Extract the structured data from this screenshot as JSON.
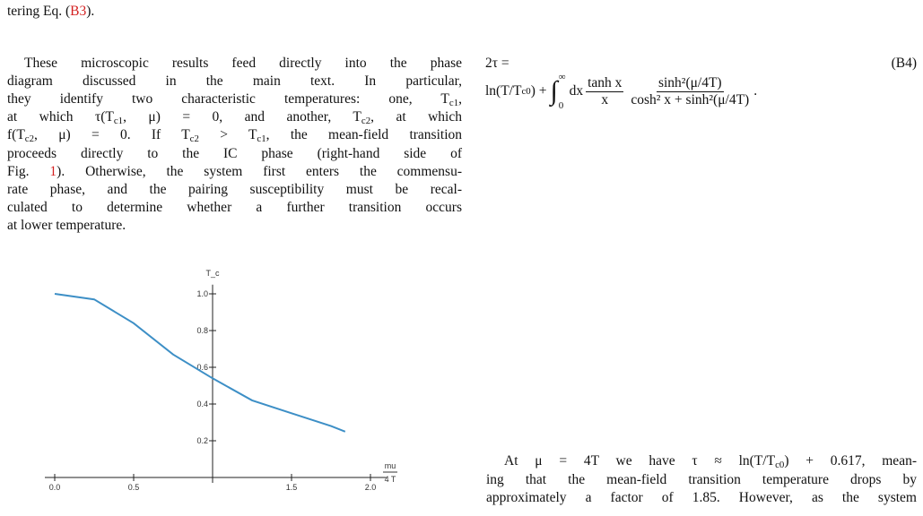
{
  "left": {
    "top_line": [
      "tering Eq. (",
      {
        "ref": "B3"
      },
      ")."
    ],
    "lines": [
      [
        "These microscopic results feed directly into the phase"
      ],
      [
        "diagram discussed in the main text. In particular,"
      ],
      [
        "they identify two characteristic temperatures: one, T",
        {
          "sub": "c1"
        },
        ","
      ],
      [
        "at which τ(T",
        {
          "sub": "c1"
        },
        ", μ) = 0, and another, T",
        {
          "sub": "c2"
        },
        ", at which"
      ],
      [
        "f(T",
        {
          "sub": "c2"
        },
        ", μ) = 0. If T",
        {
          "sub": "c2"
        },
        " > T",
        {
          "sub": "c1"
        },
        ", the mean-field transition"
      ],
      [
        "proceeds directly to the IC phase (right-hand side of"
      ],
      [
        "Fig. ",
        {
          "ref": "1"
        },
        "). Otherwise, the system first enters the commensu-"
      ],
      [
        "rate phase, and the pairing susceptibility must be recal-"
      ],
      [
        "culated to determine whether a further transition occurs"
      ],
      [
        "at lower temperature."
      ]
    ]
  },
  "figure": {
    "y_label": "T_c",
    "x_label_top": "mu",
    "x_label_bottom": "4 T",
    "x": [
      0,
      0.25,
      0.5,
      0.75,
      1.0,
      1.25,
      1.5,
      1.75,
      1.84
    ],
    "y": [
      1.0,
      0.97,
      0.84,
      0.67,
      0.54,
      0.42,
      0.35,
      0.28,
      0.25
    ],
    "color": "#3d8fc6",
    "xlim": [
      0,
      2.1
    ],
    "ylim": [
      0,
      1.05
    ],
    "xticks": [
      {
        "value": 0,
        "label": "0.0"
      },
      0.5,
      1.5,
      {
        "value": 2,
        "label": "2.0"
      }
    ],
    "yticks": [
      0.2,
      0.4,
      0.6,
      0.8,
      {
        "value": 1,
        "label": "1.0"
      }
    ]
  },
  "right": {
    "equation": {
      "lhs": "2τ =",
      "number": "(B4)",
      "ln_start": "ln(T/T",
      "ln_sub": "c0",
      "ln_end": ") +",
      "int_sym": "∫",
      "int_lower": "0",
      "int_upper": "∞",
      "dx": "dx",
      "frac1_num": "tanh x",
      "frac1_den": "x",
      "frac2_num": "sinh²(μ/4T)",
      "frac2_den": "cosh² x + sinh²(μ/4T)",
      "end": "."
    },
    "lines": [
      [
        "At μ = 4T we have τ ≈ ln(T/T",
        {
          "sub": "c0"
        },
        ") + 0.617, mean-"
      ],
      [
        "ing that the mean-field transition temperature drops by"
      ],
      [
        "approximately a factor of 1.85. However, as the system"
      ]
    ]
  }
}
